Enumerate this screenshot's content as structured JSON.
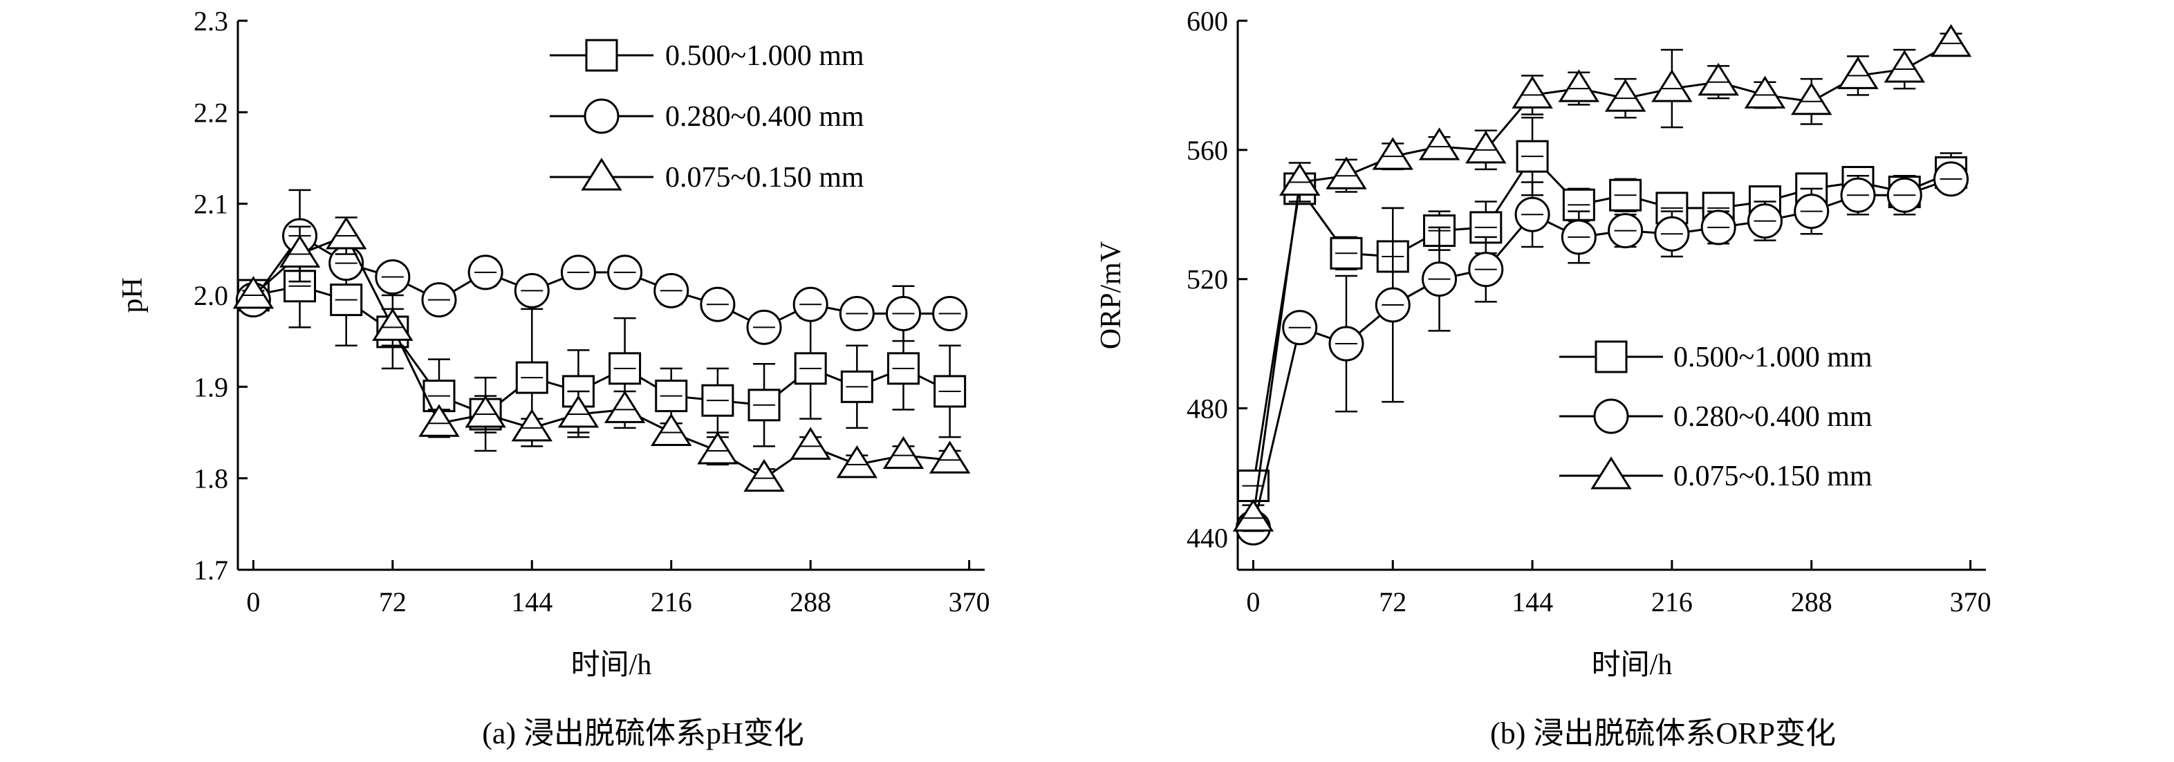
{
  "chart_data": [
    {
      "type": "line",
      "caption": "(a) 浸出脱硫体系pH变化",
      "xlabel": "时间/h",
      "ylabel": "pH",
      "xlim": [
        -8,
        378
      ],
      "ylim": [
        1.7,
        2.3
      ],
      "xticks": [
        0,
        72,
        144,
        216,
        288,
        370
      ],
      "yticks": [
        1.7,
        1.8,
        1.9,
        2.0,
        2.1,
        2.2,
        2.3
      ],
      "ytick_labels": [
        "1.7",
        "1.8",
        "1.9",
        "2.0",
        "2.1",
        "2.2",
        "2.3"
      ],
      "grid": false,
      "legend_position": "top-right",
      "series": [
        {
          "name": "0.500~1.000 mm",
          "marker": "square",
          "x": [
            0,
            24,
            48,
            72,
            96,
            120,
            144,
            168,
            192,
            216,
            240,
            264,
            288,
            312,
            336,
            360
          ],
          "y": [
            2.0,
            2.01,
            1.995,
            1.96,
            1.89,
            1.87,
            1.91,
            1.895,
            1.92,
            1.89,
            1.885,
            1.88,
            1.92,
            1.9,
            1.92,
            1.895
          ],
          "err": [
            0.01,
            0.045,
            0.05,
            0.04,
            0.04,
            0.04,
            0.075,
            0.045,
            0.055,
            0.03,
            0.035,
            0.045,
            0.055,
            0.045,
            0.045,
            0.05
          ]
        },
        {
          "name": "0.280~0.400 mm",
          "marker": "circle",
          "x": [
            0,
            24,
            48,
            72,
            96,
            120,
            144,
            168,
            192,
            216,
            240,
            264,
            288,
            312,
            336,
            360
          ],
          "y": [
            1.995,
            2.065,
            2.035,
            2.02,
            1.995,
            2.025,
            2.005,
            2.025,
            2.025,
            2.005,
            1.99,
            1.965,
            1.99,
            1.98,
            1.98,
            1.98
          ],
          "err": [
            0.005,
            0.05,
            0.01,
            0.01,
            0.01,
            0.015,
            0.01,
            0.01,
            0.01,
            0.015,
            0.005,
            0.01,
            0.01,
            0.01,
            0.03,
            0.005
          ]
        },
        {
          "name": "0.075~0.150 mm",
          "marker": "triangle",
          "x": [
            0,
            24,
            48,
            72,
            96,
            120,
            144,
            168,
            192,
            216,
            240,
            264,
            288,
            312,
            336,
            360
          ],
          "y": [
            2.0,
            2.045,
            2.065,
            1.965,
            1.86,
            1.87,
            1.855,
            1.87,
            1.875,
            1.85,
            1.83,
            1.8,
            1.835,
            1.815,
            1.825,
            1.82
          ],
          "err": [
            0.005,
            0.03,
            0.02,
            0.02,
            0.015,
            0.02,
            0.01,
            0.025,
            0.02,
            0.01,
            0.015,
            0.01,
            0.01,
            0.01,
            0.01,
            0.01
          ]
        }
      ]
    },
    {
      "type": "line",
      "caption": "(b) 浸出脱硫体系ORP变化",
      "xlabel": "时间/h",
      "ylabel": "ORP/mV",
      "xlim": [
        -8,
        378
      ],
      "ylim": [
        430,
        600
      ],
      "xticks": [
        0,
        72,
        144,
        216,
        288,
        370
      ],
      "yticks": [
        440,
        480,
        520,
        560,
        600
      ],
      "ytick_labels": [
        "440",
        "480",
        "520",
        "560",
        "600"
      ],
      "grid": false,
      "legend_position": "center-right",
      "series": [
        {
          "name": "0.500~1.000 mm",
          "marker": "square",
          "x": [
            0,
            24,
            48,
            72,
            96,
            120,
            144,
            168,
            192,
            216,
            240,
            264,
            288,
            312,
            336,
            360
          ],
          "y": [
            456,
            548,
            528,
            527,
            535,
            536,
            558,
            543,
            546,
            542,
            542,
            544,
            548,
            550,
            547,
            553
          ],
          "err": [
            3,
            4,
            5,
            15,
            6,
            8,
            12,
            5,
            5,
            3,
            3,
            4,
            4,
            4,
            5,
            6
          ]
        },
        {
          "name": "0.280~0.400 mm",
          "marker": "circle",
          "x": [
            0,
            24,
            48,
            72,
            96,
            120,
            144,
            168,
            192,
            216,
            240,
            264,
            288,
            312,
            336,
            360
          ],
          "y": [
            443,
            505,
            500,
            512,
            520,
            523,
            540,
            533,
            535,
            534,
            536,
            538,
            541,
            546,
            546,
            551
          ],
          "err": [
            3,
            4,
            21,
            30,
            16,
            10,
            10,
            8,
            5,
            7,
            5,
            6,
            7,
            6,
            6,
            4
          ]
        },
        {
          "name": "0.075~0.150 mm",
          "marker": "triangle",
          "x": [
            0,
            24,
            48,
            72,
            96,
            120,
            144,
            168,
            192,
            216,
            240,
            264,
            288,
            312,
            336,
            360
          ],
          "y": [
            446,
            550,
            552,
            558,
            561,
            560,
            577,
            579,
            576,
            579,
            581,
            577,
            575,
            583,
            585,
            593
          ],
          "err": [
            4,
            6,
            5,
            4,
            3,
            6,
            6,
            5,
            6,
            12,
            5,
            4,
            7,
            6,
            6,
            3
          ]
        }
      ]
    }
  ]
}
